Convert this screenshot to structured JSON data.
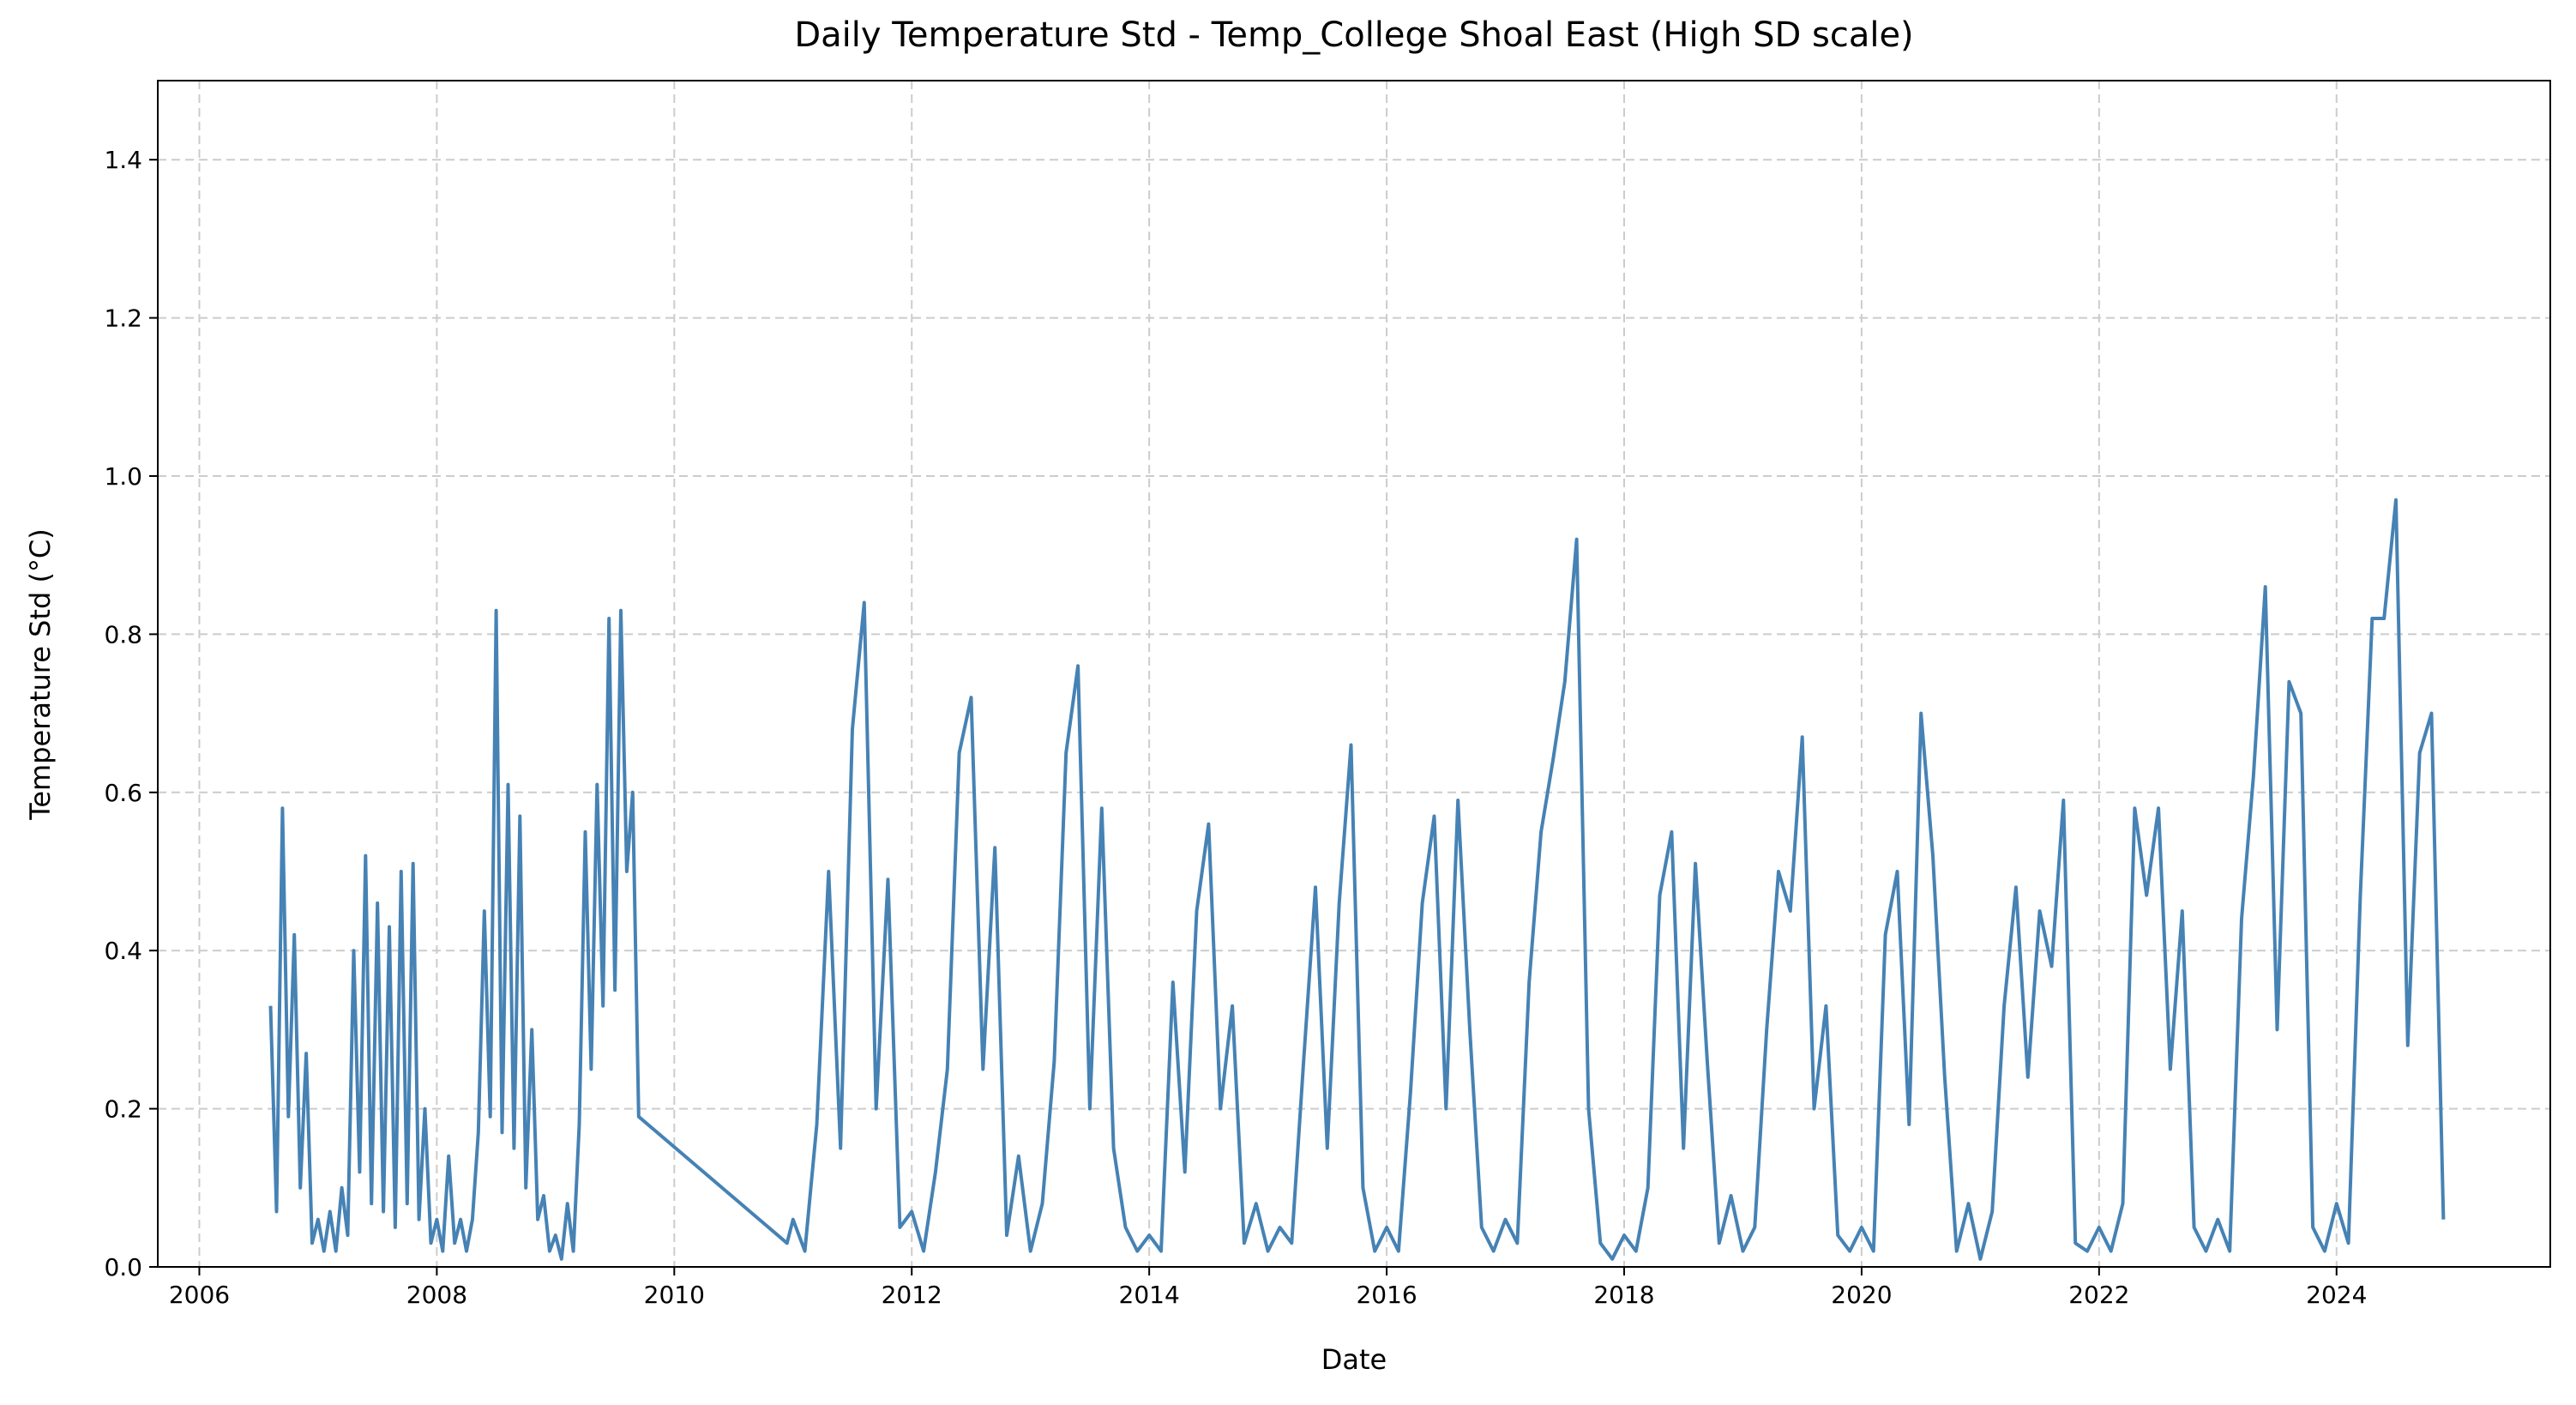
{
  "chart_data": {
    "type": "line",
    "title": "Daily Temperature Std - Temp_College Shoal East (High SD scale)",
    "x_label": "Date",
    "y_label": "Temperature Std (°C)",
    "xlim": [
      2005.65,
      2025.8
    ],
    "xticks": [
      2006,
      2008,
      2010,
      2012,
      2014,
      2016,
      2018,
      2020,
      2022,
      2024
    ],
    "ylim": [
      0,
      1.5
    ],
    "yticks": [
      {
        "value": 0,
        "label": "0.0"
      },
      0.2,
      0.4,
      0.6,
      0.8,
      {
        "value": 1,
        "label": "1.0"
      },
      1.2,
      1.4
    ],
    "grid": true,
    "series": [
      {
        "color": "#4682b4",
        "x": [
          2006.6,
          2006.65,
          2006.7,
          2006.75,
          2006.8,
          2006.85,
          2006.9,
          2006.95,
          2007,
          2007.05,
          2007.1,
          2007.15,
          2007.2,
          2007.25,
          2007.3,
          2007.35,
          2007.4,
          2007.45,
          2007.5,
          2007.55,
          2007.6,
          2007.65,
          2007.7,
          2007.75,
          2007.8,
          2007.85,
          2007.9,
          2007.95,
          2008,
          2008.05,
          2008.1,
          2008.15,
          2008.2,
          2008.25,
          2008.3,
          2008.35,
          2008.4,
          2008.45,
          2008.5,
          2008.55,
          2008.6,
          2008.65,
          2008.7,
          2008.75,
          2008.8,
          2008.85,
          2008.9,
          2008.95,
          2009,
          2009.05,
          2009.1,
          2009.15,
          2009.2,
          2009.25,
          2009.3,
          2009.35,
          2009.4,
          2009.45,
          2009.5,
          2009.55,
          2009.6,
          2009.65,
          2009.7,
          2010.95,
          2011,
          2011.1,
          2011.2,
          2011.3,
          2011.4,
          2011.5,
          2011.6,
          2011.7,
          2011.8,
          2011.9,
          2012,
          2012.1,
          2012.2,
          2012.3,
          2012.4,
          2012.5,
          2012.6,
          2012.7,
          2012.8,
          2012.9,
          2013,
          2013.1,
          2013.2,
          2013.3,
          2013.4,
          2013.5,
          2013.6,
          2013.7,
          2013.8,
          2013.9,
          2014,
          2014.1,
          2014.2,
          2014.3,
          2014.4,
          2014.5,
          2014.6,
          2014.7,
          2014.8,
          2014.9,
          2015,
          2015.1,
          2015.2,
          2015.3,
          2015.4,
          2015.5,
          2015.6,
          2015.7,
          2015.8,
          2015.9,
          2016,
          2016.1,
          2016.2,
          2016.3,
          2016.4,
          2016.5,
          2016.6,
          2016.7,
          2016.8,
          2016.9,
          2017,
          2017.1,
          2017.2,
          2017.3,
          2017.4,
          2017.5,
          2017.6,
          2017.7,
          2017.8,
          2017.9,
          2018,
          2018.1,
          2018.2,
          2018.3,
          2018.4,
          2018.5,
          2018.6,
          2018.7,
          2018.8,
          2018.9,
          2019,
          2019.1,
          2019.2,
          2019.3,
          2019.4,
          2019.5,
          2019.6,
          2019.7,
          2019.8,
          2019.9,
          2020,
          2020.1,
          2020.2,
          2020.3,
          2020.4,
          2020.5,
          2020.6,
          2020.7,
          2020.8,
          2020.9,
          2021,
          2021.1,
          2021.2,
          2021.3,
          2021.4,
          2021.5,
          2021.6,
          2021.7,
          2021.8,
          2021.9,
          2022,
          2022.1,
          2022.2,
          2022.3,
          2022.4,
          2022.5,
          2022.6,
          2022.7,
          2022.8,
          2022.9,
          2023,
          2023.1,
          2023.2,
          2023.3,
          2023.4,
          2023.5,
          2023.6,
          2023.7,
          2023.8,
          2023.9,
          2024,
          2024.1,
          2024.2,
          2024.3,
          2024.4,
          2024.5,
          2024.6,
          2024.7,
          2024.8,
          2024.9
        ],
        "values": [
          0.33,
          0.07,
          0.58,
          0.19,
          0.42,
          0.1,
          0.27,
          0.03,
          0.06,
          0.02,
          0.07,
          0.02,
          0.1,
          0.04,
          0.4,
          0.12,
          0.52,
          0.08,
          0.46,
          0.07,
          0.43,
          0.05,
          0.5,
          0.08,
          0.51,
          0.06,
          0.2,
          0.03,
          0.06,
          0.02,
          0.14,
          0.03,
          0.06,
          0.02,
          0.06,
          0.17,
          0.45,
          0.19,
          0.83,
          0.17,
          0.61,
          0.15,
          0.57,
          0.1,
          0.3,
          0.06,
          0.09,
          0.02,
          0.04,
          0.01,
          0.08,
          0.02,
          0.18,
          0.55,
          0.25,
          0.61,
          0.33,
          0.82,
          0.35,
          0.83,
          0.5,
          0.6,
          0.19,
          0.03,
          0.06,
          0.02,
          0.18,
          0.5,
          0.15,
          0.68,
          0.84,
          0.2,
          0.49,
          0.05,
          0.07,
          0.02,
          0.12,
          0.25,
          0.65,
          0.72,
          0.25,
          0.53,
          0.04,
          0.14,
          0.02,
          0.08,
          0.26,
          0.65,
          0.76,
          0.2,
          0.58,
          0.15,
          0.05,
          0.02,
          0.04,
          0.02,
          0.36,
          0.12,
          0.45,
          0.56,
          0.2,
          0.33,
          0.03,
          0.08,
          0.02,
          0.05,
          0.03,
          0.26,
          0.48,
          0.15,
          0.46,
          0.66,
          0.1,
          0.02,
          0.05,
          0.02,
          0.22,
          0.46,
          0.57,
          0.2,
          0.59,
          0.3,
          0.05,
          0.02,
          0.06,
          0.03,
          0.36,
          0.55,
          0.64,
          0.74,
          0.92,
          0.2,
          0.03,
          0.01,
          0.04,
          0.02,
          0.1,
          0.47,
          0.55,
          0.15,
          0.51,
          0.26,
          0.03,
          0.09,
          0.02,
          0.05,
          0.3,
          0.5,
          0.45,
          0.67,
          0.2,
          0.33,
          0.04,
          0.02,
          0.05,
          0.02,
          0.42,
          0.5,
          0.18,
          0.7,
          0.52,
          0.24,
          0.02,
          0.08,
          0.01,
          0.07,
          0.33,
          0.48,
          0.24,
          0.45,
          0.38,
          0.59,
          0.03,
          0.02,
          0.05,
          0.02,
          0.08,
          0.58,
          0.47,
          0.58,
          0.25,
          0.45,
          0.05,
          0.02,
          0.06,
          0.02,
          0.44,
          0.62,
          0.86,
          0.3,
          0.74,
          0.7,
          0.05,
          0.02,
          0.08,
          0.03,
          0.47,
          0.82,
          0.82,
          0.97,
          0.28,
          0.65,
          0.7,
          0.06
        ]
      }
    ]
  }
}
